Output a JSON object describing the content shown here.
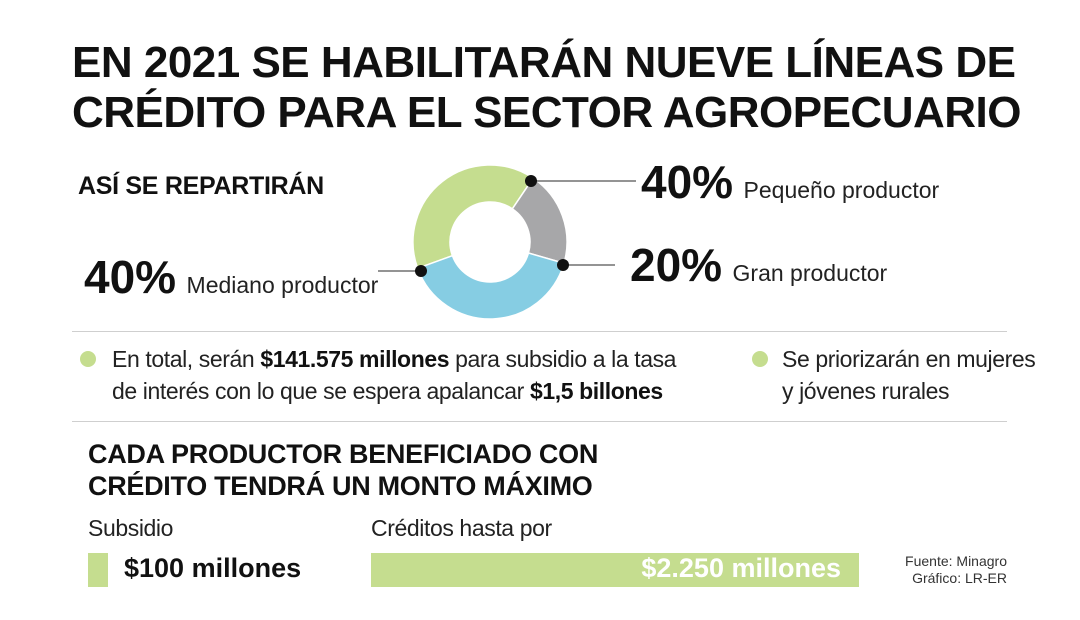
{
  "title": {
    "line1": "EN 2021 SE HABILITARÁN NUEVE LÍNEAS DE",
    "line2": "CRÉDITO PARA EL SECTOR AGROPECUARIO"
  },
  "subtitle": "ASÍ SE REPARTIRÁN",
  "chart_data": {
    "type": "pie",
    "title": "ASÍ SE REPARTIRÁN",
    "slices": [
      {
        "label": "Pequeño productor",
        "value": 40,
        "display": "40%",
        "color": "#c5dd8f"
      },
      {
        "label": "Gran productor",
        "value": 20,
        "display": "20%",
        "color": "#a7a7a9"
      },
      {
        "label": "Mediano productor",
        "value": 40,
        "display": "40%",
        "color": "#86cde3"
      }
    ],
    "donut": true,
    "legend": "none"
  },
  "notes": {
    "left": {
      "p1": "En total, serán ",
      "b1": "$141.575 millones",
      "p2": " para subsidio a la tasa",
      "p3": "de interés con lo que se espera apalancar ",
      "b2": "$1,5 billones"
    },
    "right": {
      "line1": "Se priorizarán en mujeres",
      "line2": "y jóvenes rurales"
    }
  },
  "section2": {
    "line1": "CADA PRODUCTOR BENEFICIADO CON",
    "line2": "CRÉDITO TENDRÁ UN MONTO MÁXIMO"
  },
  "amounts": {
    "subsidy": {
      "label": "Subsidio",
      "value": "$100 millones"
    },
    "credit": {
      "label": "Créditos hasta por",
      "value": "$2.250 millones"
    }
  },
  "source": {
    "line1": "Fuente: Minagro",
    "line2": "Gráfico: LR-ER"
  },
  "colors": {
    "green": "#c5dd8f",
    "gray": "#a7a7a9",
    "blue": "#86cde3"
  }
}
